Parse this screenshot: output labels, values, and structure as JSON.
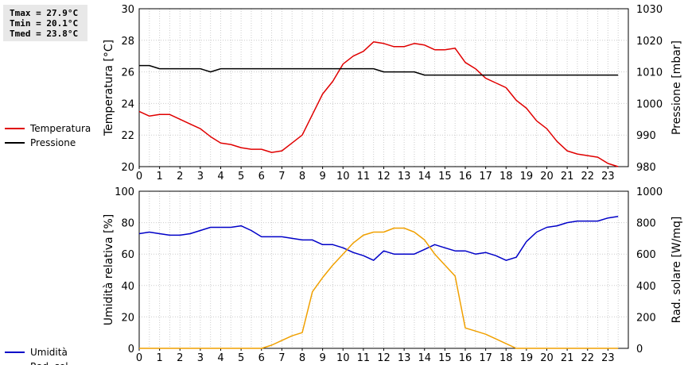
{
  "stats": {
    "tmax": "Tmax = 27.9°C",
    "tmin": "Tmin = 20.1°C",
    "tmed": "Tmed = 23.8°C"
  },
  "chart_data": [
    {
      "type": "line",
      "x_ticks": [
        "0",
        "1",
        "2",
        "3",
        "4",
        "5",
        "6",
        "7",
        "8",
        "9",
        "10",
        "11",
        "12",
        "13",
        "14",
        "15",
        "16",
        "17",
        "18",
        "19",
        "20",
        "21",
        "22",
        "23"
      ],
      "xlim": [
        0,
        24
      ],
      "ylabel": "Temperatura [°C]",
      "ylim": [
        20,
        30
      ],
      "y_ticks": [
        "20",
        "22",
        "24",
        "26",
        "28",
        "30"
      ],
      "y2label": "Pressione [mbar]",
      "y2lim": [
        980,
        1030
      ],
      "y2_ticks": [
        "980",
        "990",
        "1000",
        "1010",
        "1020",
        "1030"
      ],
      "grid": true,
      "legend_position": "left",
      "series": [
        {
          "name": "Temperatura",
          "color": "#e00000",
          "axis": "left",
          "x": [
            0,
            0.5,
            1,
            1.5,
            2,
            2.5,
            3,
            3.5,
            4,
            4.5,
            5,
            5.5,
            6,
            6.5,
            7,
            7.5,
            8,
            8.5,
            9,
            9.5,
            10,
            10.5,
            11,
            11.5,
            12,
            12.5,
            13,
            13.5,
            14,
            14.5,
            15,
            15.5,
            16,
            16.5,
            17,
            17.5,
            18,
            18.5,
            19,
            19.5,
            20,
            20.5,
            21,
            21.5,
            22,
            22.5,
            23,
            23.5
          ],
          "y": [
            23.5,
            23.2,
            23.3,
            23.3,
            23.0,
            22.7,
            22.4,
            21.9,
            21.5,
            21.4,
            21.2,
            21.1,
            21.1,
            20.9,
            21.0,
            21.5,
            22.0,
            23.3,
            24.6,
            25.4,
            26.5,
            27.0,
            27.3,
            27.9,
            27.8,
            27.6,
            27.6,
            27.8,
            27.7,
            27.4,
            27.4,
            27.5,
            26.6,
            26.2,
            25.6,
            25.3,
            25.0,
            24.2,
            23.7,
            22.9,
            22.4,
            21.6,
            21.0,
            20.8,
            20.7,
            20.6,
            20.2,
            20.0
          ]
        },
        {
          "name": "Pressione",
          "color": "#000000",
          "axis": "right",
          "x": [
            0,
            0.5,
            1,
            1.5,
            2,
            2.5,
            3,
            3.5,
            4,
            4.5,
            5,
            5.5,
            6,
            6.5,
            7,
            7.5,
            8,
            8.5,
            9,
            9.5,
            10,
            10.5,
            11,
            11.5,
            12,
            12.5,
            13,
            13.5,
            14,
            14.5,
            15,
            15.5,
            16,
            16.5,
            17,
            17.5,
            18,
            18.5,
            19,
            19.5,
            20,
            20.5,
            21,
            21.5,
            22,
            22.5,
            23,
            23.5
          ],
          "y": [
            1012,
            1012,
            1011,
            1011,
            1011,
            1011,
            1011,
            1010,
            1011,
            1011,
            1011,
            1011,
            1011,
            1011,
            1011,
            1011,
            1011,
            1011,
            1011,
            1011,
            1011,
            1011,
            1011,
            1011,
            1010,
            1010,
            1010,
            1010,
            1009,
            1009,
            1009,
            1009,
            1009,
            1009,
            1009,
            1009,
            1009,
            1009,
            1009,
            1009,
            1009,
            1009,
            1009,
            1009,
            1009,
            1009,
            1009,
            1009
          ]
        }
      ]
    },
    {
      "type": "line",
      "x_ticks": [
        "0",
        "1",
        "2",
        "3",
        "4",
        "5",
        "6",
        "7",
        "8",
        "9",
        "10",
        "11",
        "12",
        "13",
        "14",
        "15",
        "16",
        "17",
        "18",
        "19",
        "20",
        "21",
        "22",
        "23"
      ],
      "xlim": [
        0,
        24
      ],
      "ylabel": "Umidità relativa [%]",
      "ylim": [
        0,
        100
      ],
      "y_ticks": [
        "0",
        "20",
        "40",
        "60",
        "80",
        "100"
      ],
      "y2label": "Rad. solare [W/mq]",
      "y2lim": [
        0,
        1000
      ],
      "y2_ticks": [
        "0",
        "200",
        "400",
        "600",
        "800",
        "1000"
      ],
      "grid": true,
      "legend_position": "left",
      "series": [
        {
          "name": "Umidità",
          "color": "#0000c8",
          "axis": "left",
          "x": [
            0,
            0.5,
            1,
            1.5,
            2,
            2.5,
            3,
            3.5,
            4,
            4.5,
            5,
            5.5,
            6,
            6.5,
            7,
            7.5,
            8,
            8.5,
            9,
            9.5,
            10,
            10.5,
            11,
            11.5,
            12,
            12.5,
            13,
            13.5,
            14,
            14.5,
            15,
            15.5,
            16,
            16.5,
            17,
            17.5,
            18,
            18.5,
            19,
            19.5,
            20,
            20.5,
            21,
            21.5,
            22,
            22.5,
            23,
            23.5
          ],
          "y": [
            73,
            74,
            73,
            72,
            72,
            73,
            75,
            77,
            77,
            77,
            78,
            75,
            71,
            71,
            71,
            70,
            69,
            69,
            66,
            66,
            64,
            61,
            59,
            56,
            62,
            60,
            60,
            60,
            63,
            66,
            64,
            62,
            62,
            60,
            61,
            59,
            56,
            58,
            68,
            74,
            77,
            78,
            80,
            81,
            81,
            81,
            83,
            84
          ]
        },
        {
          "name": "Rad. sol.",
          "color": "#f0a000",
          "axis": "right",
          "x": [
            0,
            0.5,
            1,
            1.5,
            2,
            2.5,
            3,
            3.5,
            4,
            4.5,
            5,
            5.5,
            6,
            6.5,
            7,
            7.5,
            8,
            8.5,
            9,
            9.5,
            10,
            10.5,
            11,
            11.5,
            12,
            12.5,
            13,
            13.5,
            14,
            14.5,
            15,
            15.5,
            16,
            16.5,
            17,
            17.5,
            18,
            18.5,
            19,
            19.5,
            20,
            20.5,
            21,
            21.5,
            22,
            22.5,
            23,
            23.5
          ],
          "y": [
            0,
            0,
            0,
            0,
            0,
            0,
            0,
            0,
            0,
            0,
            0,
            0,
            0,
            20,
            50,
            80,
            100,
            360,
            450,
            530,
            600,
            670,
            720,
            740,
            740,
            765,
            765,
            740,
            690,
            600,
            530,
            460,
            130,
            110,
            90,
            60,
            30,
            0,
            0,
            0,
            0,
            0,
            0,
            0,
            0,
            0,
            0,
            0
          ]
        }
      ]
    }
  ]
}
